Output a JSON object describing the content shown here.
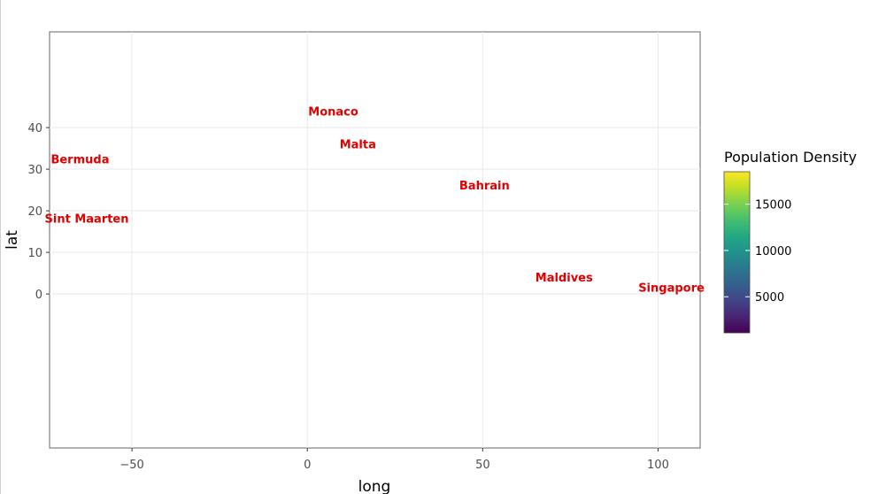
{
  "chart_data": {
    "type": "scatter",
    "title": "",
    "xlabel": "long",
    "ylabel": "lat",
    "xlim": [
      -73.5,
      112
    ],
    "ylim": [
      -37,
      63
    ],
    "x_ticks": [
      -50,
      0,
      50,
      100
    ],
    "y_ticks": [
      0,
      10,
      20,
      30,
      40
    ],
    "grid": true,
    "points": [
      {
        "label": "Monaco",
        "long": 7.4,
        "lat": 43.7
      },
      {
        "label": "Malta",
        "long": 14.4,
        "lat": 35.9
      },
      {
        "label": "Bermuda",
        "long": -64.8,
        "lat": 32.3
      },
      {
        "label": "Bahrain",
        "long": 50.5,
        "lat": 26.0
      },
      {
        "label": "Sint Maarten",
        "long": -62.9,
        "lat": 18.0
      },
      {
        "label": "Maldives",
        "long": 73.2,
        "lat": 3.9
      },
      {
        "label": "Singapore",
        "long": 103.8,
        "lat": 1.4
      }
    ],
    "label_color": "#e00000",
    "legend": {
      "title": "Population Density",
      "ticks": [
        5000,
        10000,
        15000
      ],
      "range": [
        1100,
        18500
      ],
      "colormap": "viridis",
      "placement": "right"
    }
  }
}
